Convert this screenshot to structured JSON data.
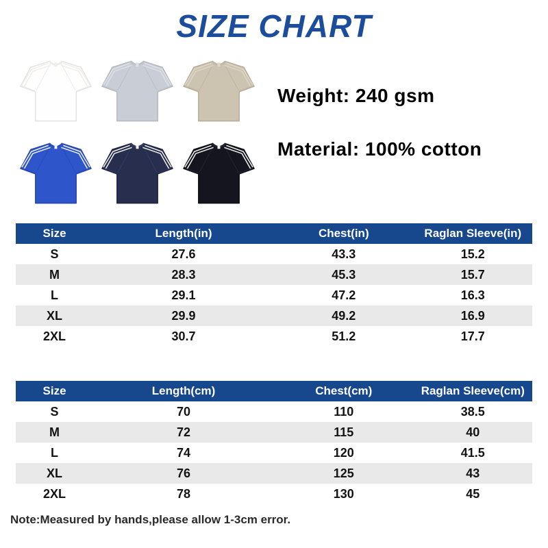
{
  "title": "SIZE CHART",
  "specs": {
    "weight": "Weight: 240 gsm",
    "material": "Material: 100% cotton"
  },
  "shirts": [
    {
      "name": "white",
      "body": "#fefefe",
      "outline": "#e2e1dd",
      "seam": "#ecebe6",
      "stripe": "#f0eee9"
    },
    {
      "name": "heather-gray",
      "body": "#c9cdd5",
      "outline": "#b2b6bf",
      "seam": "#bcc0c9",
      "stripe": "#dee1e6"
    },
    {
      "name": "khaki",
      "body": "#ccc3b1",
      "outline": "#b5ab97",
      "seam": "#c0b6a3",
      "stripe": "#ded7c9"
    },
    {
      "name": "royal-blue",
      "body": "#2f55cb",
      "outline": "#2443ae",
      "seam": "#2a4cbd",
      "stripe": "#f4f4f1"
    },
    {
      "name": "navy",
      "body": "#272e4e",
      "outline": "#1d233f",
      "seam": "#333b60",
      "stripe": "#f4f4f1"
    },
    {
      "name": "black",
      "body": "#14151f",
      "outline": "#0d0e16",
      "seam": "#232433",
      "stripe": "#f4f4f1"
    }
  ],
  "tables": [
    {
      "headers": [
        "Size",
        "Length(in)",
        "Chest(in)",
        "Raglan Sleeve(in)"
      ],
      "rows": [
        [
          "S",
          "27.6",
          "43.3",
          "15.2"
        ],
        [
          "M",
          "28.3",
          "45.3",
          "15.7"
        ],
        [
          "L",
          "29.1",
          "47.2",
          "16.3"
        ],
        [
          "XL",
          "29.9",
          "49.2",
          "16.9"
        ],
        [
          "2XL",
          "30.7",
          "51.2",
          "17.7"
        ]
      ]
    },
    {
      "headers": [
        "Size",
        "Length(cm)",
        "Chest(cm)",
        "Raglan Sleeve(cm)"
      ],
      "rows": [
        [
          "S",
          "70",
          "110",
          "38.5"
        ],
        [
          "M",
          "72",
          "115",
          "40"
        ],
        [
          "L",
          "74",
          "120",
          "41.5"
        ],
        [
          "XL",
          "76",
          "125",
          "43"
        ],
        [
          "2XL",
          "78",
          "130",
          "45"
        ]
      ]
    }
  ],
  "note": "Note:Measured by hands,please allow 1-3cm error.",
  "colors": {
    "accent": "#1c4c9c",
    "header_bg": "#17478c",
    "row_alt": "#e9e9e9"
  }
}
